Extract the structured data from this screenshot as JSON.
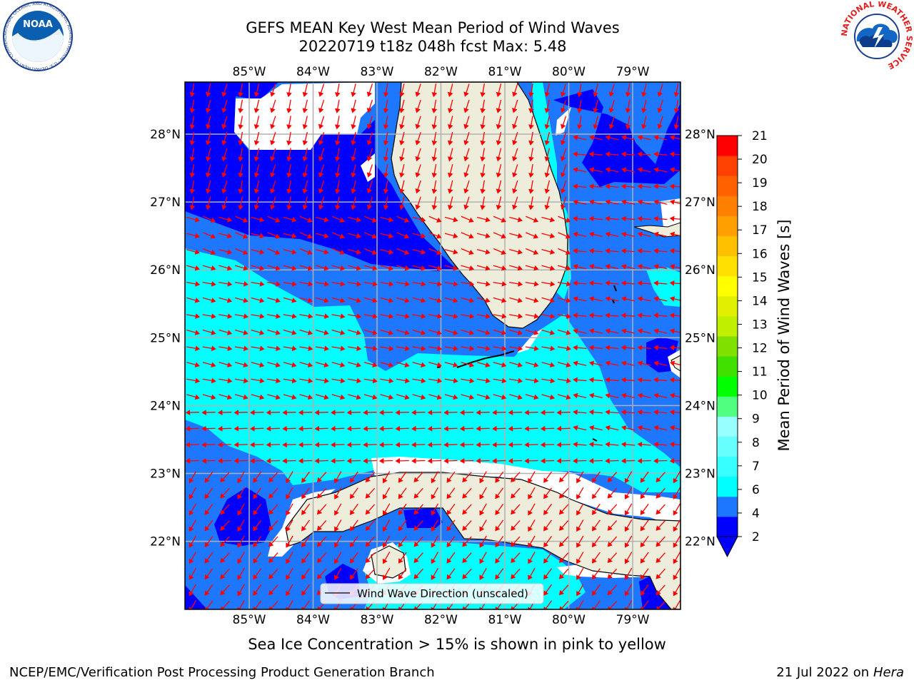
{
  "title": {
    "line1": "GEFS MEAN Key West Mean Period of Wind Waves",
    "line2": "20220719 t18z 048h fcst   Max: 5.48"
  },
  "map": {
    "lon_labels": [
      "85°W",
      "84°W",
      "83°W",
      "82°W",
      "81°W",
      "80°W",
      "79°W"
    ],
    "lat_labels": [
      "28°N",
      "27°N",
      "26°N",
      "25°N",
      "24°N",
      "23°N",
      "22°N"
    ],
    "legend_label": "Wind Wave Direction (unscaled)",
    "colors": {
      "land": "#eeeddb",
      "ocean_2_4": "#0000ff",
      "ocean_4_6": "#1e78ff",
      "ocean_6_8": "#00ffff",
      "arrows": "#ff0000",
      "grid": "#b0b0b0"
    }
  },
  "colorbar": {
    "label": "Mean Period of Wind Waves [s]",
    "ticks": [
      "21",
      "20",
      "19",
      "18",
      "17",
      "16",
      "15",
      "14",
      "13",
      "12",
      "11",
      "10",
      "9",
      "8",
      "7",
      "6",
      "4",
      "2"
    ],
    "colors": [
      "#0000ff",
      "#1e78ff",
      "#00ffff",
      "#38ffff",
      "#68ffff",
      "#98ffff",
      "#50ff80",
      "#00ff00",
      "#40e000",
      "#80e000",
      "#c0f000",
      "#e0f000",
      "#ffff00",
      "#ffe000",
      "#ffc000",
      "#ffa000",
      "#ff8000",
      "#ff6000",
      "#ff4000",
      "#ff0000"
    ]
  },
  "note": "Sea Ice Concentration > 15% is shown in pink to yellow",
  "footer": {
    "left": "NCEP/EMC/Verification Post Processing Product Generation Branch",
    "right_date": "21 Jul 2022 on ",
    "right_host": "Hera"
  },
  "logos": {
    "noaa": "NOAA",
    "noaa_ring": "NATIONAL OCEANIC AND ATMOSPHERIC ADMINISTRATION · U.S. DEPARTMENT OF COMMERCE",
    "nws_ring": "NATIONAL WEATHER SERVICE"
  }
}
